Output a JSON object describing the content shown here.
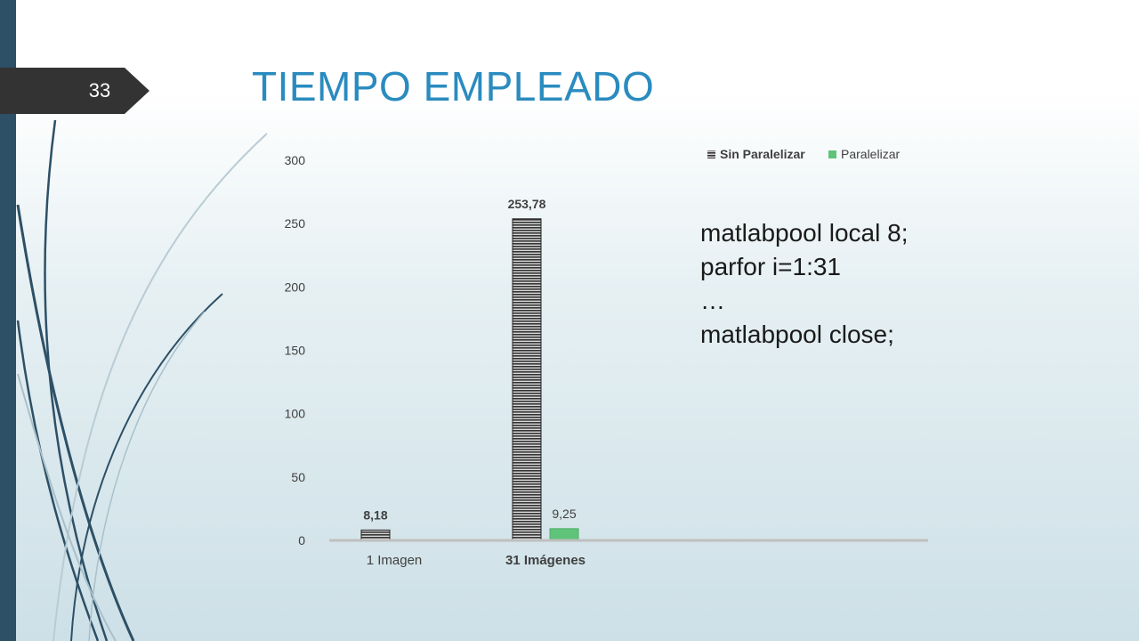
{
  "slide": {
    "number": "33",
    "title": "TIEMPO EMPLEADO"
  },
  "code": {
    "lines": [
      "matlabpool local 8;",
      "parfor i=1:31",
      "…",
      "matlabpool close;"
    ]
  },
  "chart_data": {
    "type": "bar",
    "categories": [
      "1 Imagen",
      "31 Imágenes"
    ],
    "series": [
      {
        "name": "Sin Paralelizar",
        "values": [
          8.18,
          253.78
        ],
        "labels": [
          "8,18",
          "253,78"
        ],
        "color": "#333333"
      },
      {
        "name": "Paralelizar",
        "values": [
          null,
          9.25
        ],
        "labels": [
          "",
          "9,25"
        ],
        "color": "#5fc47a"
      }
    ],
    "yticks": [
      0,
      50,
      100,
      150,
      200,
      250,
      300
    ],
    "ylim": [
      0,
      300
    ],
    "grid": false,
    "legend": "top-right",
    "axis_color": "#bfbfbf",
    "text_color": "#404040"
  }
}
